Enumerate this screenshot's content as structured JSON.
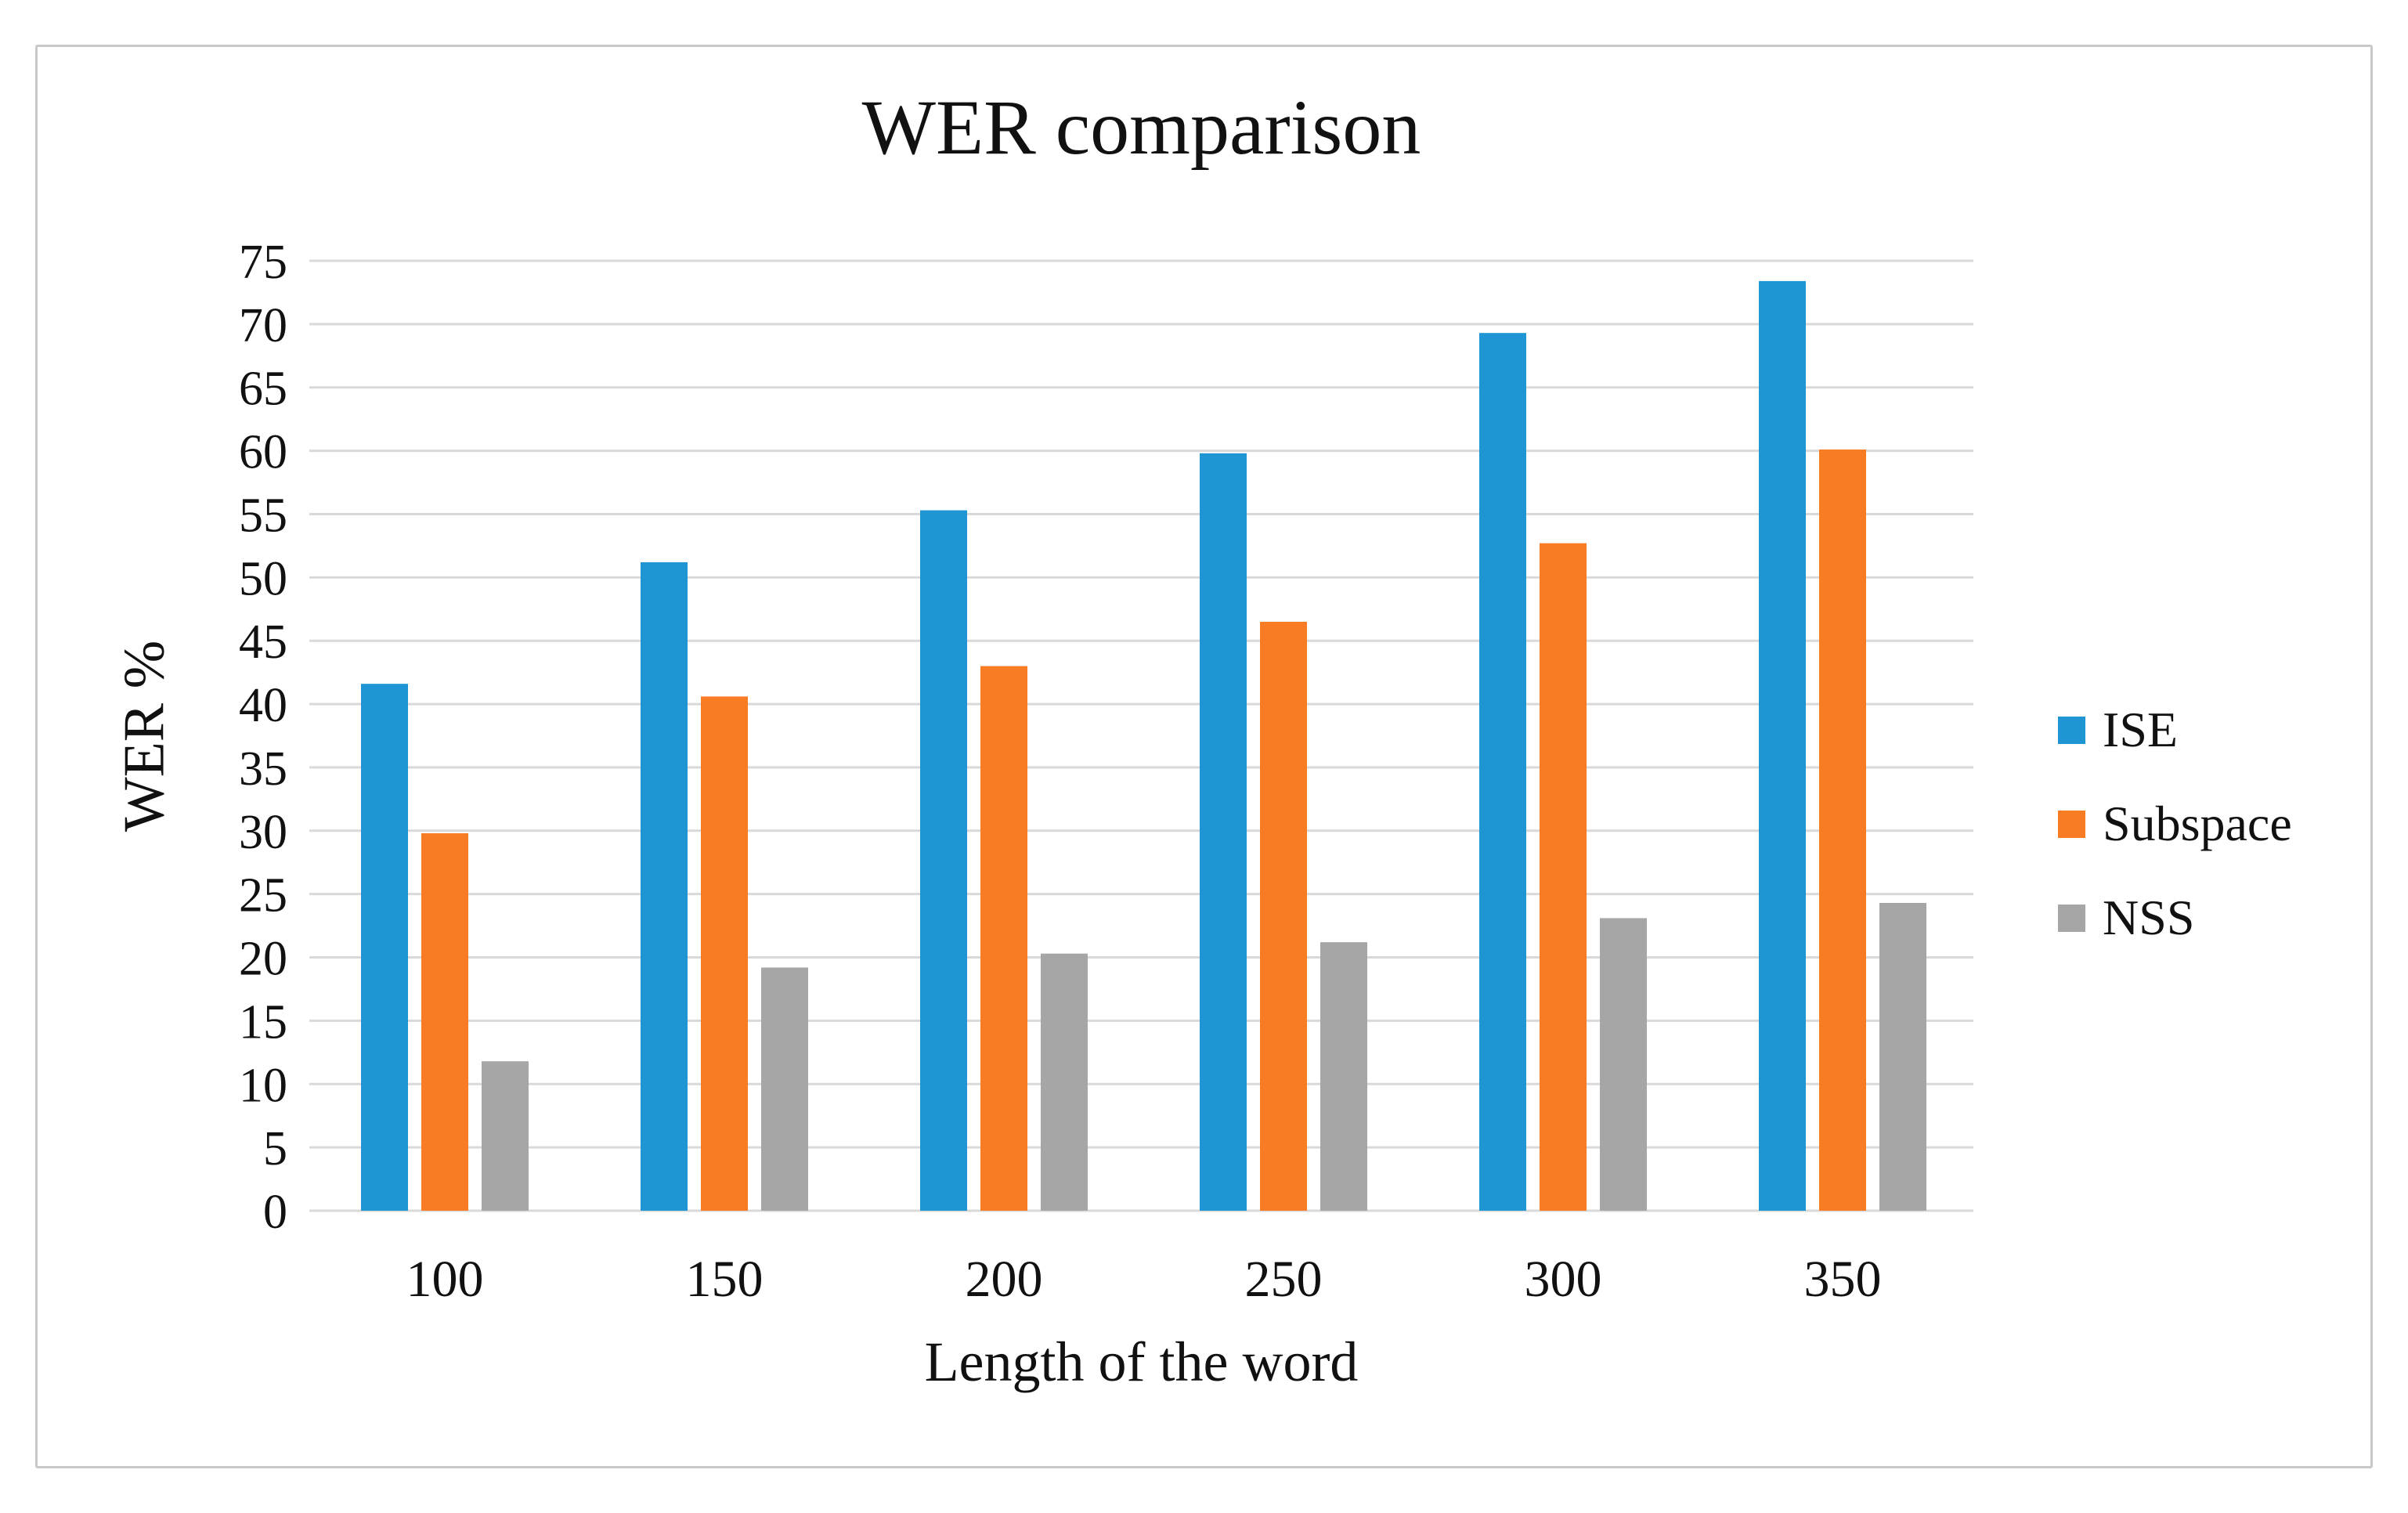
{
  "figure": {
    "background": "#ffffff",
    "frame_border_color": "#c9c9c9"
  },
  "chart_data": {
    "type": "bar",
    "title": "WER comparison",
    "xlabel": "Length of the word",
    "ylabel": "WER %",
    "categories": [
      "100",
      "150",
      "200",
      "250",
      "300",
      "350"
    ],
    "series": [
      {
        "name": "ISE",
        "color": "#2095d3",
        "values": [
          41.6,
          51.2,
          55.3,
          59.8,
          69.3,
          73.4
        ]
      },
      {
        "name": "Subspace",
        "color": "#f87c23",
        "values": [
          29.8,
          40.6,
          43.0,
          46.5,
          52.7,
          60.1
        ]
      },
      {
        "name": "NSS",
        "color": "#a6a6a6",
        "values": [
          11.8,
          19.2,
          20.3,
          21.2,
          23.1,
          24.3
        ]
      }
    ],
    "ylim": [
      0,
      75
    ],
    "ytick_step": 5,
    "grid": true,
    "gridline_color": "#d9d9d9",
    "legend_position": "right",
    "text_color": "#111111"
  }
}
